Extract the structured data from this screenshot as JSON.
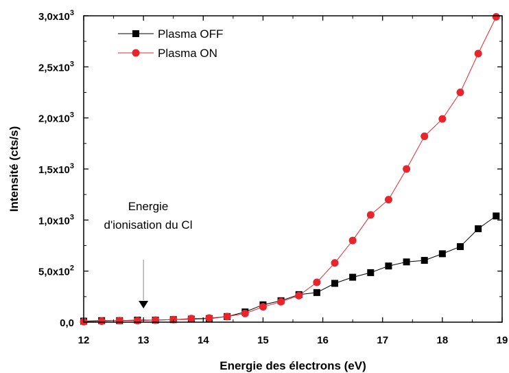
{
  "chart_data": {
    "type": "line",
    "xlabel": "Energie des électrons (eV)",
    "ylabel": "Intensité (cts/s)",
    "xlim": [
      12,
      19
    ],
    "ylim": [
      0,
      3000
    ],
    "x_ticks": [
      "12",
      "13",
      "14",
      "15",
      "16",
      "17",
      "18",
      "19"
    ],
    "y_ticks": [
      {
        "value": 0,
        "mantissa": "0,0",
        "exponent": ""
      },
      {
        "value": 500,
        "mantissa": "5,0x10",
        "exponent": "2"
      },
      {
        "value": 1000,
        "mantissa": "1,0x10",
        "exponent": "3"
      },
      {
        "value": 1500,
        "mantissa": "1,5x10",
        "exponent": "3"
      },
      {
        "value": 2000,
        "mantissa": "2,0x10",
        "exponent": "3"
      },
      {
        "value": 2500,
        "mantissa": "2,5x10",
        "exponent": "3"
      },
      {
        "value": 3000,
        "mantissa": "3,0x10",
        "exponent": "3"
      }
    ],
    "grid": false,
    "legend_position": "top-left",
    "series": [
      {
        "name": "Plasma OFF",
        "color": "#000000",
        "marker": "square",
        "x": [
          12.0,
          12.3,
          12.6,
          12.9,
          13.2,
          13.5,
          13.8,
          14.1,
          14.4,
          14.7,
          15.0,
          15.3,
          15.6,
          15.9,
          16.2,
          16.5,
          16.8,
          17.1,
          17.4,
          17.7,
          18.0,
          18.3,
          18.6,
          18.9
        ],
        "y": [
          10,
          15,
          15,
          20,
          20,
          25,
          30,
          35,
          55,
          100,
          170,
          210,
          270,
          290,
          380,
          440,
          485,
          550,
          590,
          605,
          670,
          740,
          915,
          1040
        ]
      },
      {
        "name": "Plasma ON",
        "color": "#e8242c",
        "marker": "circle",
        "x": [
          12.0,
          12.3,
          12.6,
          12.9,
          13.2,
          13.5,
          13.8,
          14.1,
          14.4,
          14.7,
          15.0,
          15.3,
          15.6,
          15.9,
          16.2,
          16.5,
          16.8,
          17.1,
          17.4,
          17.7,
          18.0,
          18.3,
          18.6,
          18.9
        ],
        "y": [
          5,
          10,
          15,
          15,
          20,
          25,
          35,
          40,
          55,
          85,
          150,
          200,
          260,
          390,
          580,
          800,
          1050,
          1200,
          1500,
          1820,
          1990,
          2250,
          2630,
          2990
        ]
      }
    ],
    "annotations": [
      {
        "lines": [
          "Energie",
          "d'ionisation du Cl"
        ],
        "arrow_at_x": 13.0
      }
    ]
  }
}
